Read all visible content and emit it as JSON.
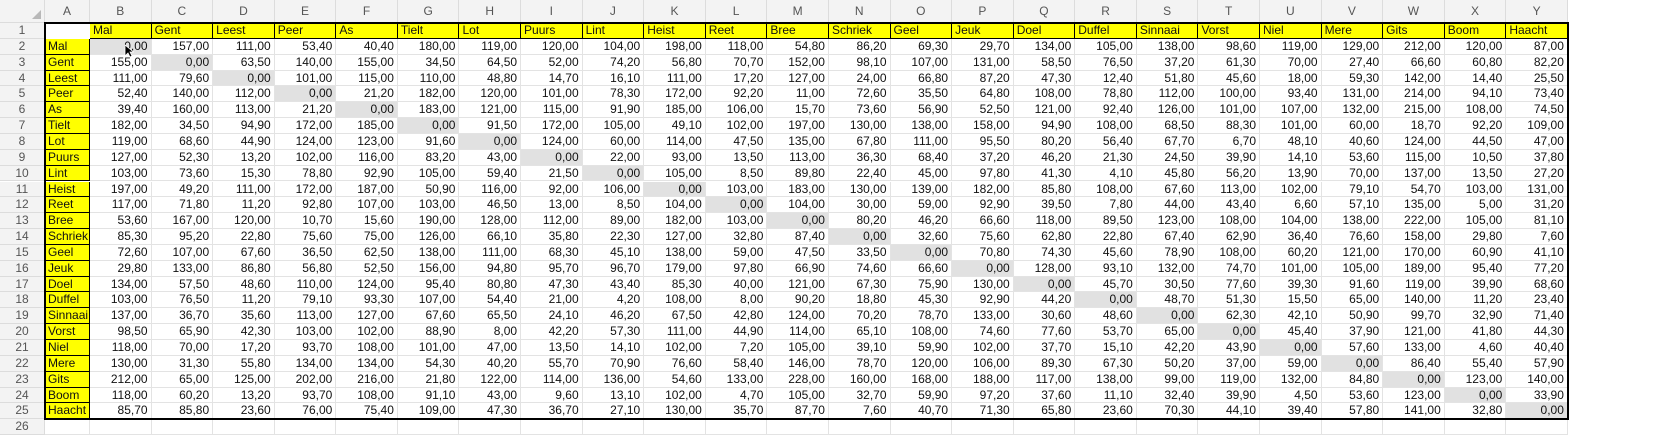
{
  "sheet": {
    "column_letters": [
      "A",
      "B",
      "C",
      "D",
      "E",
      "F",
      "G",
      "H",
      "I",
      "J",
      "K",
      "L",
      "M",
      "N",
      "O",
      "P",
      "Q",
      "R",
      "S",
      "T",
      "U",
      "V",
      "W",
      "X",
      "Y"
    ],
    "row_numbers": [
      "1",
      "2",
      "3",
      "4",
      "5",
      "6",
      "7",
      "8",
      "9",
      "10",
      "11",
      "12",
      "13",
      "14",
      "15",
      "16",
      "17",
      "18",
      "19",
      "20",
      "21",
      "22",
      "23",
      "24",
      "25",
      "26"
    ],
    "header_fill_color": "#ffff00",
    "diagonal_fill_color": "#e1e1e1",
    "places": [
      "Mal",
      "Gent",
      "Leest",
      "Peer",
      "As",
      "Tielt",
      "Lot",
      "Puurs",
      "Lint",
      "Heist",
      "Reet",
      "Bree",
      "Schriek",
      "Geel",
      "Jeuk",
      "Doel",
      "Duffel",
      "Sinnaai",
      "Vorst",
      "Niel",
      "Mere",
      "Gits",
      "Boom",
      "Haacht"
    ],
    "matrix": [
      [
        "0,00",
        "157,00",
        "111,00",
        "53,40",
        "40,40",
        "180,00",
        "119,00",
        "120,00",
        "104,00",
        "198,00",
        "118,00",
        "54,80",
        "86,20",
        "69,30",
        "29,70",
        "134,00",
        "105,00",
        "138,00",
        "98,60",
        "119,00",
        "129,00",
        "212,00",
        "120,00",
        "87,00"
      ],
      [
        "155,00",
        "0,00",
        "63,50",
        "140,00",
        "155,00",
        "34,50",
        "64,50",
        "52,00",
        "74,20",
        "56,80",
        "70,70",
        "152,00",
        "98,10",
        "107,00",
        "131,00",
        "58,50",
        "76,50",
        "37,20",
        "61,30",
        "70,00",
        "27,40",
        "66,60",
        "60,80",
        "82,20"
      ],
      [
        "111,00",
        "79,60",
        "0,00",
        "101,00",
        "115,00",
        "110,00",
        "48,80",
        "14,70",
        "16,10",
        "111,00",
        "17,20",
        "127,00",
        "24,00",
        "66,80",
        "87,20",
        "47,30",
        "12,40",
        "51,80",
        "45,60",
        "18,00",
        "59,30",
        "142,00",
        "14,40",
        "25,50"
      ],
      [
        "52,40",
        "140,00",
        "112,00",
        "0,00",
        "21,20",
        "182,00",
        "120,00",
        "101,00",
        "78,30",
        "172,00",
        "92,20",
        "11,00",
        "72,60",
        "35,50",
        "64,80",
        "108,00",
        "78,80",
        "112,00",
        "100,00",
        "93,40",
        "131,00",
        "214,00",
        "94,10",
        "73,40"
      ],
      [
        "39,40",
        "160,00",
        "113,00",
        "21,20",
        "0,00",
        "183,00",
        "121,00",
        "115,00",
        "91,90",
        "185,00",
        "106,00",
        "15,70",
        "73,60",
        "56,90",
        "52,50",
        "121,00",
        "92,40",
        "126,00",
        "101,00",
        "107,00",
        "132,00",
        "215,00",
        "108,00",
        "74,50"
      ],
      [
        "182,00",
        "34,50",
        "94,90",
        "172,00",
        "185,00",
        "0,00",
        "91,50",
        "172,00",
        "105,00",
        "49,10",
        "102,00",
        "197,00",
        "130,00",
        "138,00",
        "158,00",
        "94,90",
        "108,00",
        "68,50",
        "88,30",
        "101,00",
        "60,00",
        "18,70",
        "92,20",
        "109,00"
      ],
      [
        "119,00",
        "68,60",
        "44,90",
        "124,00",
        "123,00",
        "91,60",
        "0,00",
        "124,00",
        "60,00",
        "114,00",
        "47,50",
        "135,00",
        "67,80",
        "111,00",
        "95,50",
        "80,20",
        "56,40",
        "67,70",
        "6,70",
        "48,10",
        "40,60",
        "124,00",
        "44,50",
        "47,00"
      ],
      [
        "127,00",
        "52,30",
        "13,20",
        "102,00",
        "116,00",
        "83,20",
        "43,00",
        "0,00",
        "22,00",
        "93,00",
        "13,50",
        "113,00",
        "36,30",
        "68,40",
        "37,20",
        "46,20",
        "21,30",
        "24,50",
        "39,90",
        "14,10",
        "53,60",
        "115,00",
        "10,50",
        "37,80"
      ],
      [
        "103,00",
        "73,60",
        "15,30",
        "78,80",
        "92,90",
        "105,00",
        "59,40",
        "21,50",
        "0,00",
        "105,00",
        "8,50",
        "89,80",
        "22,40",
        "45,00",
        "97,80",
        "41,30",
        "4,10",
        "45,80",
        "56,20",
        "13,90",
        "70,00",
        "137,00",
        "13,50",
        "27,20"
      ],
      [
        "197,00",
        "49,20",
        "111,00",
        "172,00",
        "187,00",
        "50,90",
        "116,00",
        "92,00",
        "106,00",
        "0,00",
        "103,00",
        "183,00",
        "130,00",
        "139,00",
        "182,00",
        "85,80",
        "108,00",
        "67,60",
        "113,00",
        "102,00",
        "79,10",
        "54,70",
        "103,00",
        "131,00"
      ],
      [
        "117,00",
        "71,80",
        "11,20",
        "92,80",
        "107,00",
        "103,00",
        "46,50",
        "13,00",
        "8,50",
        "104,00",
        "0,00",
        "104,00",
        "30,00",
        "59,00",
        "92,90",
        "39,50",
        "7,80",
        "44,00",
        "43,40",
        "6,60",
        "57,10",
        "135,00",
        "5,00",
        "31,20"
      ],
      [
        "53,60",
        "167,00",
        "120,00",
        "10,70",
        "15,60",
        "190,00",
        "128,00",
        "112,00",
        "89,00",
        "182,00",
        "103,00",
        "0,00",
        "80,20",
        "46,20",
        "66,60",
        "118,00",
        "89,50",
        "123,00",
        "108,00",
        "104,00",
        "138,00",
        "222,00",
        "105,00",
        "81,10"
      ],
      [
        "85,30",
        "95,20",
        "22,80",
        "75,60",
        "75,00",
        "126,00",
        "66,10",
        "35,80",
        "22,30",
        "127,00",
        "32,80",
        "87,40",
        "0,00",
        "32,60",
        "75,60",
        "62,80",
        "22,80",
        "67,40",
        "62,90",
        "36,40",
        "76,60",
        "158,00",
        "29,80",
        "7,60"
      ],
      [
        "72,60",
        "107,00",
        "67,60",
        "36,50",
        "62,50",
        "138,00",
        "111,00",
        "68,30",
        "45,10",
        "138,00",
        "59,00",
        "47,50",
        "33,50",
        "0,00",
        "70,80",
        "74,30",
        "45,60",
        "78,90",
        "108,00",
        "60,20",
        "121,00",
        "170,00",
        "60,90",
        "41,10"
      ],
      [
        "29,80",
        "133,00",
        "86,80",
        "56,80",
        "52,50",
        "156,00",
        "94,80",
        "95,70",
        "96,70",
        "179,00",
        "97,80",
        "66,90",
        "74,60",
        "66,60",
        "0,00",
        "128,00",
        "93,10",
        "132,00",
        "74,70",
        "101,00",
        "105,00",
        "189,00",
        "95,40",
        "77,20"
      ],
      [
        "134,00",
        "57,50",
        "48,60",
        "110,00",
        "124,00",
        "95,40",
        "80,80",
        "47,30",
        "43,40",
        "85,30",
        "40,00",
        "121,00",
        "67,30",
        "75,90",
        "130,00",
        "0,00",
        "45,70",
        "30,50",
        "77,60",
        "39,30",
        "91,60",
        "119,00",
        "39,90",
        "68,60"
      ],
      [
        "103,00",
        "76,50",
        "11,20",
        "79,10",
        "93,30",
        "107,00",
        "54,40",
        "21,00",
        "4,20",
        "108,00",
        "8,00",
        "90,20",
        "18,80",
        "45,30",
        "92,90",
        "44,20",
        "0,00",
        "48,70",
        "51,30",
        "15,50",
        "65,00",
        "140,00",
        "11,20",
        "23,40"
      ],
      [
        "137,00",
        "36,70",
        "35,60",
        "113,00",
        "127,00",
        "67,60",
        "65,50",
        "24,10",
        "46,20",
        "67,50",
        "42,80",
        "124,00",
        "70,20",
        "78,70",
        "133,00",
        "30,60",
        "48,60",
        "0,00",
        "62,30",
        "42,10",
        "50,90",
        "99,70",
        "32,90",
        "71,40"
      ],
      [
        "98,50",
        "65,90",
        "42,30",
        "103,00",
        "102,00",
        "88,90",
        "8,00",
        "42,20",
        "57,30",
        "111,00",
        "44,90",
        "114,00",
        "65,10",
        "108,00",
        "74,60",
        "77,60",
        "53,70",
        "65,00",
        "0,00",
        "45,40",
        "37,90",
        "121,00",
        "41,80",
        "44,30"
      ],
      [
        "118,00",
        "70,00",
        "17,20",
        "93,70",
        "108,00",
        "101,00",
        "47,00",
        "13,50",
        "14,10",
        "102,00",
        "7,20",
        "105,00",
        "39,10",
        "59,90",
        "102,00",
        "37,70",
        "15,10",
        "42,20",
        "43,90",
        "0,00",
        "57,60",
        "133,00",
        "4,60",
        "40,40"
      ],
      [
        "130,00",
        "31,30",
        "55,80",
        "134,00",
        "134,00",
        "54,30",
        "40,20",
        "55,70",
        "70,90",
        "76,60",
        "58,40",
        "146,00",
        "78,70",
        "120,00",
        "106,00",
        "89,30",
        "67,30",
        "50,20",
        "37,00",
        "59,00",
        "0,00",
        "86,40",
        "55,40",
        "57,90"
      ],
      [
        "212,00",
        "65,00",
        "125,00",
        "202,00",
        "216,00",
        "21,80",
        "122,00",
        "114,00",
        "136,00",
        "54,60",
        "133,00",
        "228,00",
        "160,00",
        "168,00",
        "188,00",
        "117,00",
        "138,00",
        "99,00",
        "119,00",
        "132,00",
        "84,80",
        "0,00",
        "123,00",
        "140,00"
      ],
      [
        "118,00",
        "60,20",
        "13,20",
        "93,70",
        "108,00",
        "91,10",
        "43,00",
        "9,60",
        "13,10",
        "102,00",
        "4,70",
        "105,00",
        "32,70",
        "59,90",
        "97,20",
        "37,60",
        "11,10",
        "32,40",
        "39,90",
        "4,50",
        "53,60",
        "123,00",
        "0,00",
        "33,90"
      ],
      [
        "85,70",
        "85,80",
        "23,60",
        "76,00",
        "75,40",
        "109,00",
        "47,30",
        "36,70",
        "27,10",
        "130,00",
        "35,70",
        "87,70",
        "7,60",
        "40,70",
        "71,30",
        "65,80",
        "23,60",
        "70,30",
        "44,10",
        "39,40",
        "57,80",
        "141,00",
        "32,80",
        "0,00"
      ]
    ]
  }
}
